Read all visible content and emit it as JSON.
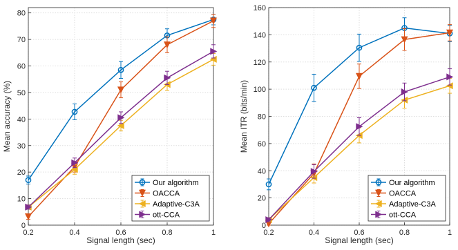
{
  "chart_data": [
    {
      "type": "line",
      "xlabel": "Signal length (sec)",
      "ylabel": "Mean accuracy (%)",
      "x": [
        0.2,
        0.4,
        0.6,
        0.8,
        1
      ],
      "xlim": [
        0.2,
        1
      ],
      "ylim": [
        0,
        82
      ],
      "xticks": [
        "0.2",
        "0.4",
        "0.6",
        "0.8",
        "1"
      ],
      "yticks": [
        0,
        10,
        20,
        30,
        40,
        50,
        60,
        70,
        80
      ],
      "grid": true,
      "legend_position": "bottom-right",
      "series": [
        {
          "name": "Our algorithm",
          "color": "#0072BD",
          "marker": "circle",
          "values": [
            17,
            42.7,
            58.5,
            71.5,
            77.5
          ],
          "errors": [
            1.5,
            3,
            3.2,
            2.5,
            2
          ]
        },
        {
          "name": "OACCA",
          "color": "#D95319",
          "marker": "triangle-down",
          "values": [
            3.2,
            22,
            51,
            68,
            77
          ],
          "errors": [
            1,
            2,
            3,
            3,
            2.5
          ]
        },
        {
          "name": "Adaptive-C3A",
          "color": "#EDB120",
          "marker": "triangle-left",
          "values": [
            6.8,
            21,
            37.5,
            53,
            62.5
          ],
          "errors": [
            0.8,
            1.8,
            2,
            2.2,
            2.2
          ]
        },
        {
          "name": "ott-CCA",
          "color": "#7E2F8E",
          "marker": "triangle-right",
          "values": [
            6.8,
            23.5,
            40.5,
            55.5,
            65.5
          ],
          "errors": [
            0.8,
            1.8,
            2.2,
            2.5,
            2.5
          ]
        }
      ]
    },
    {
      "type": "line",
      "xlabel": "Signal length (sec)",
      "ylabel": "Mean ITR (bits/min)",
      "x": [
        0.2,
        0.4,
        0.6,
        0.8,
        1
      ],
      "xlim": [
        0.2,
        1
      ],
      "ylim": [
        0,
        160
      ],
      "xticks": [
        "0.2",
        "0.4",
        "0.6",
        "0.8",
        "1"
      ],
      "yticks": [
        0,
        20,
        40,
        60,
        80,
        100,
        120,
        140,
        160
      ],
      "grid": true,
      "legend_position": "bottom-right",
      "series": [
        {
          "name": "Our algorithm",
          "color": "#0072BD",
          "marker": "circle",
          "values": [
            30,
            101,
            130.5,
            145,
            141
          ],
          "errors": [
            4,
            10,
            10,
            7.5,
            6
          ]
        },
        {
          "name": "OACCA",
          "color": "#D95319",
          "marker": "triangle-down",
          "values": [
            1,
            38,
            109.5,
            136.5,
            141.5
          ],
          "errors": [
            1,
            7,
            9,
            8,
            6
          ]
        },
        {
          "name": "Adaptive-C3A",
          "color": "#EDB120",
          "marker": "triangle-left",
          "values": [
            4,
            35,
            66,
            92,
            102.5
          ],
          "errors": [
            1.5,
            4,
            5.5,
            6,
            5.5
          ]
        },
        {
          "name": "ott-CCA",
          "color": "#7E2F8E",
          "marker": "triangle-right",
          "values": [
            4,
            39.5,
            72.5,
            98,
            109
          ],
          "errors": [
            1.5,
            5,
            6.5,
            6.5,
            6
          ]
        }
      ]
    }
  ]
}
